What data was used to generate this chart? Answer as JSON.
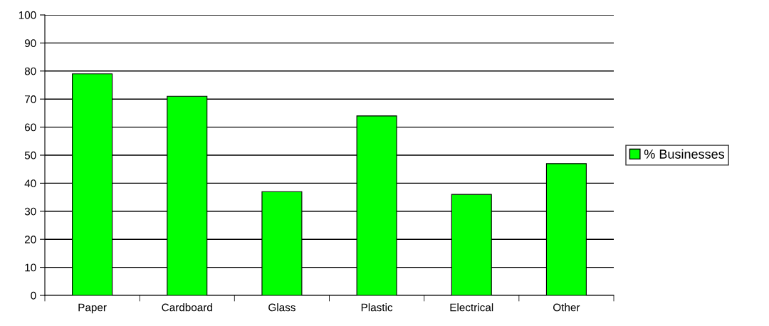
{
  "chart_data": {
    "type": "bar",
    "categories": [
      "Paper",
      "Cardboard",
      "Glass",
      "Plastic",
      "Electrical",
      "Other"
    ],
    "series": [
      {
        "name": "% Businesses",
        "color": "#00ff00",
        "values": [
          79,
          71,
          37,
          64,
          36,
          47
        ]
      }
    ],
    "ylim": [
      0,
      100
    ],
    "yticks": [
      0,
      10,
      20,
      30,
      40,
      50,
      60,
      70,
      80,
      90,
      100
    ],
    "grid": "y",
    "legend": "right"
  }
}
